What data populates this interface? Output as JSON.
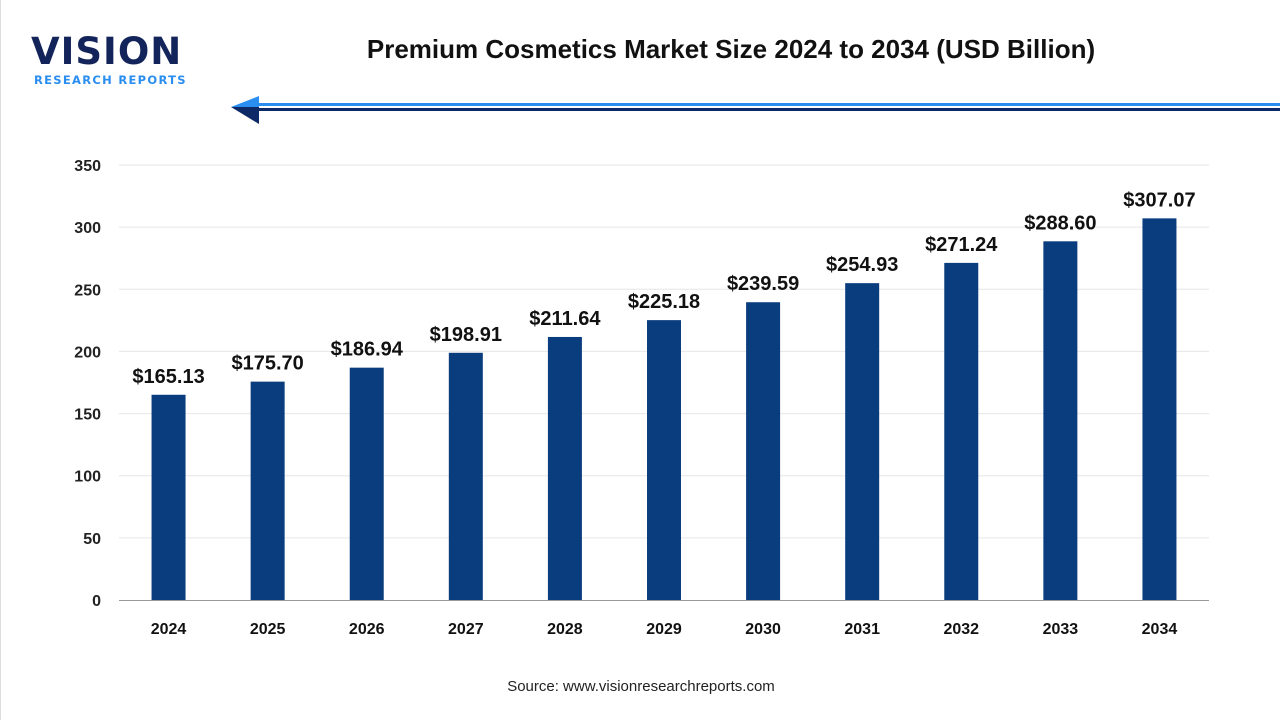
{
  "logo": {
    "word": "VISION",
    "sub": "RESEARCH REPORTS"
  },
  "title": "Premium Cosmetics Market Size 2024 to 2034 (USD Billion)",
  "source": "Source: www.visionresearchreports.com",
  "colors": {
    "bar": "#0a3d7e",
    "accent_light": "#2a8ef0",
    "accent_dark": "#0e2a66"
  },
  "chart_data": {
    "type": "bar",
    "title": "Premium Cosmetics Market Size 2024 to 2034 (USD Billion)",
    "categories": [
      "2024",
      "2025",
      "2026",
      "2027",
      "2028",
      "2029",
      "2030",
      "2031",
      "2032",
      "2033",
      "2034"
    ],
    "values": [
      165.13,
      175.7,
      186.94,
      198.91,
      211.64,
      225.18,
      239.59,
      254.93,
      271.24,
      288.6,
      307.07
    ],
    "data_labels": [
      "$165.13",
      "$175.70",
      "$186.94",
      "$198.91",
      "$211.64",
      "$225.18",
      "$239.59",
      "$254.93",
      "$271.24",
      "$288.60",
      "$307.07"
    ],
    "yticks": [
      0,
      50,
      100,
      150,
      200,
      250,
      300,
      350
    ],
    "ylim": [
      0,
      350
    ],
    "grid": true,
    "xlabel": "",
    "ylabel": ""
  }
}
